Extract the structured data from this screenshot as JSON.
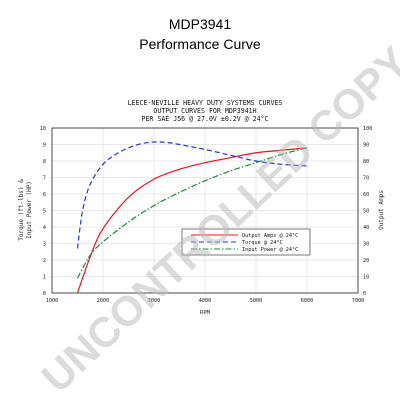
{
  "header": {
    "model": "MDP3941",
    "subtitle": "Performance Curve"
  },
  "watermark": "UNCONTROLLED COPY",
  "chart_data": {
    "type": "line",
    "title": [
      "LEECE-NEVILLE HEAVY DUTY SYSTEMS CURVES",
      "OUTPUT CURVES FOR MDP3941H",
      "PER SAE J56 @ 27.0V ±0.2V @ 24°C"
    ],
    "xlabel": "RPM",
    "ylabel_left": [
      "Torque (ft-lbs) &",
      "Input Power (HP)"
    ],
    "ylabel_right": "Output Amps",
    "xlim": [
      1000,
      7000
    ],
    "ylim_left": [
      0,
      10
    ],
    "ylim_right": [
      0,
      100
    ],
    "x_ticks": [
      "1000",
      "2000",
      "3000",
      "4000",
      "5000",
      "6000",
      "7000"
    ],
    "y_left_ticks": [
      "0",
      "1",
      "2",
      "3",
      "4",
      "5",
      "6",
      "7",
      "8",
      "9",
      "10"
    ],
    "y_right_ticks": [
      "0",
      "10",
      "20",
      "30",
      "40",
      "50",
      "60",
      "70",
      "80",
      "90",
      "100"
    ],
    "grid": true,
    "legend_position": "center-right",
    "series": [
      {
        "name": "Output Amps @ 24°C",
        "axis": "right",
        "color": "#e8141b",
        "style": "solid",
        "x": [
          1500,
          1750,
          2000,
          2500,
          3000,
          3500,
          4000,
          4500,
          5000,
          5500,
          6000
        ],
        "y": [
          0,
          22,
          39,
          58,
          69,
          75,
          79,
          82,
          85,
          86.5,
          88
        ]
      },
      {
        "name": "Torque @ 24°C",
        "axis": "left",
        "color": "#2233dd",
        "style": "dash",
        "x": [
          1500,
          1600,
          1750,
          2000,
          2250,
          2500,
          2750,
          3000,
          3250,
          3500,
          4000,
          4500,
          5000,
          5500,
          6000
        ],
        "y": [
          2.7,
          5.0,
          6.6,
          7.8,
          8.4,
          8.8,
          9.05,
          9.15,
          9.12,
          9.0,
          8.7,
          8.35,
          8.0,
          7.8,
          7.7
        ]
      },
      {
        "name": "Input Power @ 24°C",
        "axis": "left",
        "color": "#1a8a3a",
        "style": "dashdot",
        "x": [
          1500,
          1750,
          2000,
          2500,
          3000,
          3500,
          4000,
          4500,
          5000,
          5500,
          6000
        ],
        "y": [
          0.9,
          2.3,
          3.1,
          4.3,
          5.3,
          6.1,
          6.8,
          7.4,
          7.9,
          8.4,
          8.8
        ]
      }
    ]
  }
}
